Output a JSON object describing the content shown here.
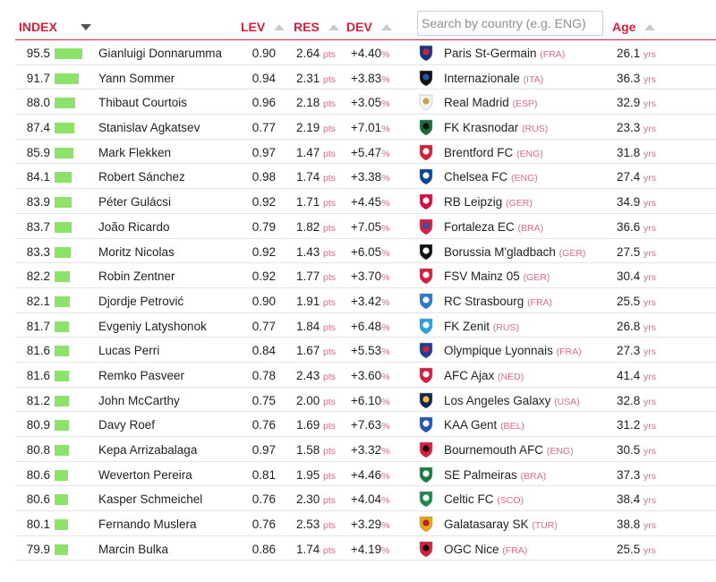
{
  "header": {
    "index": "INDEX",
    "lev": "LEV",
    "res": "RES",
    "dev": "DEV",
    "search_placeholder": "Search by country (e.g. ENG)",
    "age": "Age"
  },
  "units": {
    "pts": "pts",
    "pct": "%",
    "yrs": "yrs"
  },
  "colors": {
    "accent": "#d81e3c",
    "bar": "#8de36a",
    "unit": "#e06a85"
  },
  "rows": [
    {
      "index": "95.5",
      "name": "Gianluigi Donnarumma",
      "lev": "0.90",
      "res": "2.64",
      "dev": "+4.40",
      "club": "Paris St-Germain",
      "country": "(FRA)",
      "age": "26.1",
      "crest": "psg-crest-icon",
      "c1": "#0f3a7d",
      "c2": "#d81e3c"
    },
    {
      "index": "91.7",
      "name": "Yann Sommer",
      "lev": "0.94",
      "res": "2.31",
      "dev": "+3.83",
      "club": "Internazionale",
      "country": "(ITA)",
      "age": "36.3",
      "crest": "inter-crest-icon",
      "c1": "#111111",
      "c2": "#1f57b5"
    },
    {
      "index": "88.0",
      "name": "Thibaut Courtois",
      "lev": "0.96",
      "res": "2.18",
      "dev": "+3.05",
      "club": "Real Madrid",
      "country": "(ESP)",
      "age": "32.9",
      "crest": "real-madrid-crest-icon",
      "c1": "#f4f4f4",
      "c2": "#c9a54a"
    },
    {
      "index": "87.4",
      "name": "Stanislav Agkatsev",
      "lev": "0.77",
      "res": "2.19",
      "dev": "+7.01",
      "club": "FK Krasnodar",
      "country": "(RUS)",
      "age": "23.3",
      "crest": "krasnodar-crest-icon",
      "c1": "#1d6a3a",
      "c2": "#111111"
    },
    {
      "index": "85.9",
      "name": "Mark Flekken",
      "lev": "0.97",
      "res": "1.47",
      "dev": "+5.47",
      "club": "Brentford FC",
      "country": "(ENG)",
      "age": "31.8",
      "crest": "brentford-crest-icon",
      "c1": "#d81e3c",
      "c2": "#ffffff"
    },
    {
      "index": "84.1",
      "name": "Robert Sánchez",
      "lev": "0.98",
      "res": "1.74",
      "dev": "+3.38",
      "club": "Chelsea FC",
      "country": "(ENG)",
      "age": "27.4",
      "crest": "chelsea-crest-icon",
      "c1": "#0a4595",
      "c2": "#ffffff"
    },
    {
      "index": "83.9",
      "name": "Péter Gulácsi",
      "lev": "0.92",
      "res": "1.71",
      "dev": "+4.45",
      "club": "RB Leipzig",
      "country": "(GER)",
      "age": "34.9",
      "crest": "rb-leipzig-crest-icon",
      "c1": "#dd0741",
      "c2": "#ffffff"
    },
    {
      "index": "83.7",
      "name": "João Ricardo",
      "lev": "0.79",
      "res": "1.82",
      "dev": "+7.05",
      "club": "Fortaleza EC",
      "country": "(BRA)",
      "age": "36.6",
      "crest": "fortaleza-crest-icon",
      "c1": "#d81e3c",
      "c2": "#1f57b5"
    },
    {
      "index": "83.3",
      "name": "Moritz Nicolas",
      "lev": "0.92",
      "res": "1.43",
      "dev": "+6.05",
      "club": "Borussia M'gladbach",
      "country": "(GER)",
      "age": "27.5",
      "crest": "gladbach-crest-icon",
      "c1": "#111111",
      "c2": "#ffffff"
    },
    {
      "index": "82.2",
      "name": "Robin Zentner",
      "lev": "0.92",
      "res": "1.77",
      "dev": "+3.70",
      "club": "FSV Mainz 05",
      "country": "(GER)",
      "age": "30.4",
      "crest": "mainz-crest-icon",
      "c1": "#d81e3c",
      "c2": "#ffffff"
    },
    {
      "index": "82.1",
      "name": "Djordje Petrović",
      "lev": "0.90",
      "res": "1.91",
      "dev": "+3.42",
      "club": "RC Strasbourg",
      "country": "(FRA)",
      "age": "25.5",
      "crest": "strasbourg-crest-icon",
      "c1": "#2a7ac9",
      "c2": "#ffffff"
    },
    {
      "index": "81.7",
      "name": "Evgeniy Latyshonok",
      "lev": "0.77",
      "res": "1.84",
      "dev": "+6.48",
      "club": "FK Zenit",
      "country": "(RUS)",
      "age": "26.8",
      "crest": "zenit-crest-icon",
      "c1": "#29a3e0",
      "c2": "#ffffff"
    },
    {
      "index": "81.6",
      "name": "Lucas Perri",
      "lev": "0.84",
      "res": "1.67",
      "dev": "+5.53",
      "club": "Olympique Lyonnais",
      "country": "(FRA)",
      "age": "27.3",
      "crest": "lyon-crest-icon",
      "c1": "#1f3f95",
      "c2": "#d81e3c"
    },
    {
      "index": "81.6",
      "name": "Remko Pasveer",
      "lev": "0.78",
      "res": "2.43",
      "dev": "+3.60",
      "club": "AFC Ajax",
      "country": "(NED)",
      "age": "41.4",
      "crest": "ajax-crest-icon",
      "c1": "#d81e3c",
      "c2": "#ffffff"
    },
    {
      "index": "81.2",
      "name": "John McCarthy",
      "lev": "0.75",
      "res": "2.00",
      "dev": "+6.10",
      "club": "Los Angeles Galaxy",
      "country": "(USA)",
      "age": "32.8",
      "crest": "la-galaxy-crest-icon",
      "c1": "#10245a",
      "c2": "#f2c230"
    },
    {
      "index": "80.9",
      "name": "Davy Roef",
      "lev": "0.76",
      "res": "1.69",
      "dev": "+7.63",
      "club": "KAA Gent",
      "country": "(BEL)",
      "age": "31.2",
      "crest": "gent-crest-icon",
      "c1": "#1f57b5",
      "c2": "#ffffff"
    },
    {
      "index": "80.8",
      "name": "Kepa Arrizabalaga",
      "lev": "0.97",
      "res": "1.58",
      "dev": "+3.32",
      "club": "Bournemouth AFC",
      "country": "(ENG)",
      "age": "30.5",
      "crest": "bournemouth-crest-icon",
      "c1": "#d81e3c",
      "c2": "#111111"
    },
    {
      "index": "80.6",
      "name": "Weverton Pereira",
      "lev": "0.81",
      "res": "1.95",
      "dev": "+4.46",
      "club": "SE Palmeiras",
      "country": "(BRA)",
      "age": "37.3",
      "crest": "palmeiras-crest-icon",
      "c1": "#1b7a3e",
      "c2": "#ffffff"
    },
    {
      "index": "80.6",
      "name": "Kasper Schmeichel",
      "lev": "0.76",
      "res": "2.30",
      "dev": "+4.04",
      "club": "Celtic FC",
      "country": "(SCO)",
      "age": "38.4",
      "crest": "celtic-crest-icon",
      "c1": "#1f8a4c",
      "c2": "#ffffff"
    },
    {
      "index": "80.1",
      "name": "Fernando Muslera",
      "lev": "0.76",
      "res": "2.53",
      "dev": "+3.29",
      "club": "Galatasaray SK",
      "country": "(TUR)",
      "age": "38.8",
      "crest": "galatasaray-crest-icon",
      "c1": "#e8a317",
      "c2": "#b51f2e"
    },
    {
      "index": "79.9",
      "name": "Marcin Bulka",
      "lev": "0.86",
      "res": "1.74",
      "dev": "+4.19",
      "club": "OGC Nice",
      "country": "(FRA)",
      "age": "25.5",
      "crest": "nice-crest-icon",
      "c1": "#d81e3c",
      "c2": "#111111"
    }
  ]
}
